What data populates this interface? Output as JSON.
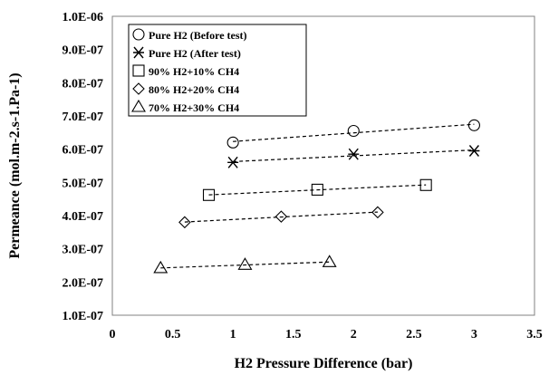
{
  "chart_data": {
    "type": "scatter",
    "xlabel": "H2 Pressure Difference (bar)",
    "ylabel": "Permeance (mol.m-2.s-1.Pa-1)",
    "xlim": [
      0,
      3.5
    ],
    "ylim": [
      1e-07,
      1e-06
    ],
    "x_ticks": [
      0,
      0.5,
      1,
      1.5,
      2,
      2.5,
      3,
      3.5
    ],
    "x_tick_labels": [
      "0",
      "0.5",
      "1",
      "1.5",
      "2",
      "2.5",
      "3",
      "3.5"
    ],
    "y_ticks": [
      1e-07,
      2e-07,
      3e-07,
      4e-07,
      5e-07,
      6e-07,
      7e-07,
      8e-07,
      9e-07,
      1e-06
    ],
    "y_tick_labels": [
      "1.0E-07",
      "2.0E-07",
      "3.0E-07",
      "4.0E-07",
      "5.0E-07",
      "6.0E-07",
      "7.0E-07",
      "8.0E-07",
      "9.0E-07",
      "1.0E-06"
    ],
    "grid": false,
    "legend_position": "top-left",
    "series": [
      {
        "name": "Pure H2 (Before test)",
        "marker": "circle",
        "x": [
          1,
          2,
          3
        ],
        "y": [
          6.2e-07,
          6.55e-07,
          6.72e-07
        ]
      },
      {
        "name": "Pure H2 (After test)",
        "marker": "asterisk",
        "x": [
          1,
          2,
          3
        ],
        "y": [
          5.6e-07,
          5.85e-07,
          5.95e-07
        ]
      },
      {
        "name": "90% H2+10% CH4",
        "marker": "square",
        "x": [
          0.8,
          1.7,
          2.6
        ],
        "y": [
          4.62e-07,
          4.78e-07,
          4.92e-07
        ]
      },
      {
        "name": "80% H2+20% CH4",
        "marker": "diamond",
        "x": [
          0.6,
          1.4,
          2.2
        ],
        "y": [
          3.8e-07,
          3.97e-07,
          4.1e-07
        ]
      },
      {
        "name": "70% H2+30% CH4",
        "marker": "triangle",
        "x": [
          0.4,
          1.1,
          1.8
        ],
        "y": [
          2.42e-07,
          2.52e-07,
          2.6e-07
        ]
      }
    ]
  }
}
